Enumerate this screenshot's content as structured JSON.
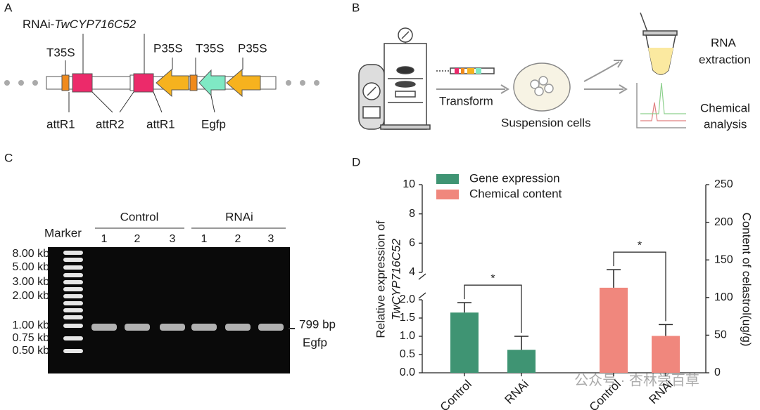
{
  "panel_labels": [
    "A",
    "B",
    "C",
    "D"
  ],
  "construct": {
    "title_prefix": "RNAi-",
    "title_gene": "TwCYP716C52",
    "top_labels": [
      "T35S",
      "P35S",
      "T35S",
      "P35S"
    ],
    "bottom_labels": [
      "attR1",
      "attR2",
      "attR1",
      "Egfp"
    ]
  },
  "transformation": {
    "arrow_label": "Transform",
    "cells_label": "Suspension cells",
    "rna_label": [
      "RNA",
      "extraction"
    ],
    "chem_label": [
      "Chemical",
      "analysis"
    ]
  },
  "gel": {
    "marker_label": "Marker",
    "groups": [
      "Control",
      "RNAi"
    ],
    "lanes": [
      1,
      2,
      3,
      1,
      2,
      3
    ],
    "sizes": [
      "8.00 kb",
      "5.00 kb",
      "3.00 kb",
      "2.00 kb",
      "1.00 kb",
      "0.75 kb",
      "0.50 kb"
    ],
    "band_size": "799 bp",
    "band_name": "Egfp"
  },
  "chart_data": {
    "type": "bar",
    "categories": [
      "Control",
      "RNAi"
    ],
    "series": [
      {
        "name": "Gene expression",
        "color": "#3f9473",
        "values": [
          1.65,
          0.63
        ],
        "errors": [
          0.27,
          0.37
        ]
      },
      {
        "name": "Chemical content",
        "color": "#f0877d",
        "values": [
          113,
          49
        ],
        "errors": [
          24,
          15
        ],
        "axis": "y2"
      }
    ],
    "ylabel": "Relative expression of",
    "ylabel_gene": "TwCYP716C52",
    "y2label": "Content of celastrol(ug/g)",
    "ylim": [
      0,
      10
    ],
    "ybreak": [
      2,
      4
    ],
    "yticks": [
      {
        "value": 0,
        "label": "0.0"
      },
      0.5,
      {
        "value": 1,
        "label": "1.0"
      },
      1.5,
      {
        "value": 2,
        "label": "2.0"
      },
      4,
      6,
      8,
      10
    ],
    "y2lim": [
      0,
      250
    ],
    "y2ticks": [
      0,
      50,
      100,
      150,
      200,
      250
    ],
    "annotations": [
      "*",
      "*"
    ]
  },
  "watermark": "公众号 · 杏林尝百草"
}
